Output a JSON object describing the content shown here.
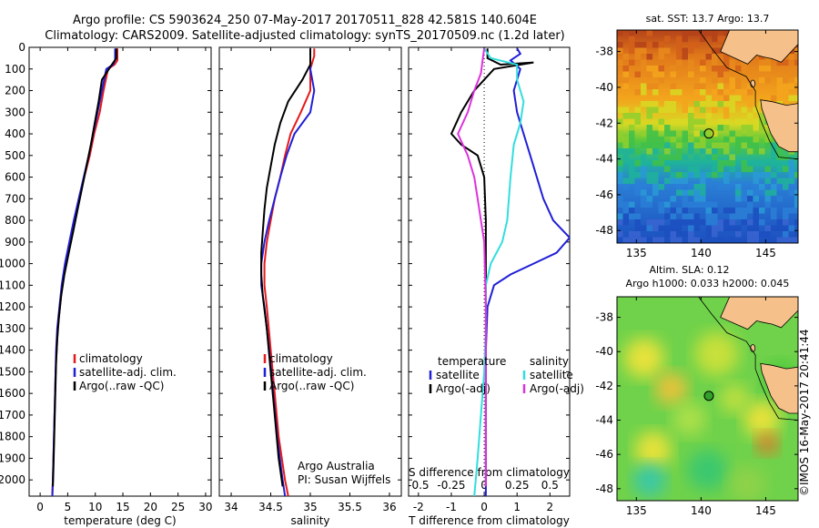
{
  "header": {
    "line1": "Argo profile: CS 5903624_250 07-May-2017 20170511_828 42.581S 140.604E",
    "line2": "Climatology: CARS2009. Satellite-adjusted climatology: synTS_20170509.nc (1.2d later)"
  },
  "stamp": "©IMOS 16-May-2017 20:41:44",
  "credit": {
    "org": "Argo Australia",
    "pi": "PI: Susan Wijffels"
  },
  "colors": {
    "climatology": "#e41a1c",
    "satellite": "#1f1fd6",
    "argo": "#000000",
    "sal_sat": "#33dddd",
    "sal_argo": "#dd33dd",
    "land": "#f5c08a"
  },
  "chart_data": [
    {
      "type": "line",
      "title": "",
      "xlabel": "temperature (deg C)",
      "ylabel": "",
      "xlim": [
        -2,
        31
      ],
      "ylim": [
        2075,
        0
      ],
      "xticks": [
        "0",
        "5",
        "10",
        "15",
        "20",
        "25",
        "30"
      ],
      "yticks": [
        "0",
        "100",
        "200",
        "300",
        "400",
        "500",
        "600",
        "700",
        "800",
        "900",
        "1000",
        "1100",
        "1200",
        "1300",
        "1400",
        "1500",
        "1600",
        "1700",
        "1800",
        "1900",
        "2000"
      ],
      "legend": {
        "placement": "lower-center",
        "entries": [
          "climatology",
          "satellite-adj. clim.",
          "Argo(..raw -QC)"
        ]
      },
      "series": [
        {
          "name": "climatology",
          "color": "#e41a1c",
          "points": [
            [
              14.0,
              5
            ],
            [
              14.0,
              60
            ],
            [
              13.5,
              80
            ],
            [
              12.3,
              100
            ],
            [
              11.5,
              200
            ],
            [
              10.8,
              300
            ],
            [
              9.8,
              400
            ],
            [
              9.0,
              500
            ],
            [
              8.0,
              600
            ],
            [
              7.1,
              700
            ],
            [
              6.2,
              800
            ],
            [
              5.4,
              900
            ],
            [
              4.6,
              1000
            ],
            [
              4.0,
              1100
            ],
            [
              3.6,
              1200
            ],
            [
              3.2,
              1300
            ],
            [
              3.0,
              1400
            ],
            [
              2.8,
              1500
            ],
            [
              2.7,
              1600
            ],
            [
              2.6,
              1700
            ],
            [
              2.5,
              1800
            ],
            [
              2.4,
              1900
            ],
            [
              2.3,
              2000
            ],
            [
              2.2,
              2075
            ]
          ]
        },
        {
          "name": "satellite-adj. clim.",
          "color": "#1f1fd6",
          "points": [
            [
              13.6,
              5
            ],
            [
              13.6,
              60
            ],
            [
              13.2,
              80
            ],
            [
              12.0,
              100
            ],
            [
              11.2,
              200
            ],
            [
              10.4,
              300
            ],
            [
              9.6,
              400
            ],
            [
              8.8,
              500
            ],
            [
              7.9,
              600
            ],
            [
              7.0,
              700
            ],
            [
              6.1,
              800
            ],
            [
              5.3,
              900
            ],
            [
              4.5,
              1000
            ],
            [
              3.9,
              1100
            ],
            [
              3.5,
              1200
            ],
            [
              3.1,
              1300
            ],
            [
              2.9,
              1400
            ],
            [
              2.8,
              1500
            ],
            [
              2.7,
              1600
            ],
            [
              2.6,
              1700
            ],
            [
              2.5,
              1800
            ],
            [
              2.4,
              1900
            ],
            [
              2.3,
              2000
            ],
            [
              2.2,
              2075
            ]
          ]
        },
        {
          "name": "Argo(..raw -QC)",
          "color": "#000000",
          "points": [
            [
              13.8,
              5
            ],
            [
              13.8,
              50
            ],
            [
              13.0,
              80
            ],
            [
              11.2,
              150
            ],
            [
              10.6,
              250
            ],
            [
              9.9,
              350
            ],
            [
              9.2,
              450
            ],
            [
              8.4,
              550
            ],
            [
              7.6,
              650
            ],
            [
              6.8,
              750
            ],
            [
              6.0,
              850
            ],
            [
              5.2,
              950
            ],
            [
              4.4,
              1050
            ],
            [
              3.8,
              1150
            ],
            [
              3.4,
              1250
            ],
            [
              3.1,
              1350
            ],
            [
              2.9,
              1450
            ],
            [
              2.8,
              1550
            ],
            [
              2.7,
              1650
            ],
            [
              2.6,
              1750
            ],
            [
              2.5,
              1850
            ],
            [
              2.4,
              1950
            ],
            [
              2.3,
              2030
            ]
          ]
        }
      ]
    },
    {
      "type": "line",
      "title": "",
      "xlabel": "salinity",
      "ylabel": "",
      "xlim": [
        33.85,
        36.15
      ],
      "ylim": [
        2075,
        0
      ],
      "xticks": [
        "34",
        "34.5",
        "35",
        "35.5",
        "36"
      ],
      "legend": {
        "placement": "lower-center",
        "entries": [
          "climatology",
          "satellite-adj. clim.",
          "Argo(..raw -QC)"
        ]
      },
      "series": [
        {
          "name": "climatology",
          "color": "#e41a1c",
          "points": [
            [
              35.05,
              5
            ],
            [
              35.05,
              40
            ],
            [
              35.0,
              100
            ],
            [
              35.0,
              200
            ],
            [
              34.88,
              300
            ],
            [
              34.75,
              400
            ],
            [
              34.68,
              500
            ],
            [
              34.62,
              600
            ],
            [
              34.55,
              700
            ],
            [
              34.5,
              800
            ],
            [
              34.45,
              900
            ],
            [
              34.42,
              1000
            ],
            [
              34.42,
              1100
            ],
            [
              34.45,
              1200
            ],
            [
              34.5,
              1400
            ],
            [
              34.55,
              1600
            ],
            [
              34.6,
              1800
            ],
            [
              34.68,
              2000
            ],
            [
              34.72,
              2075
            ]
          ]
        },
        {
          "name": "satellite-adj. clim.",
          "color": "#1f1fd6",
          "points": [
            [
              35.0,
              5
            ],
            [
              35.0,
              100
            ],
            [
              35.05,
              200
            ],
            [
              35.0,
              300
            ],
            [
              34.8,
              400
            ],
            [
              34.7,
              500
            ],
            [
              34.62,
              600
            ],
            [
              34.55,
              700
            ],
            [
              34.48,
              800
            ],
            [
              34.42,
              900
            ],
            [
              34.38,
              1000
            ],
            [
              34.38,
              1100
            ],
            [
              34.42,
              1200
            ],
            [
              34.48,
              1400
            ],
            [
              34.53,
              1600
            ],
            [
              34.58,
              1800
            ],
            [
              34.65,
              2000
            ],
            [
              34.68,
              2075
            ]
          ]
        },
        {
          "name": "Argo(..raw -QC)",
          "color": "#000000",
          "points": [
            [
              35.0,
              5
            ],
            [
              35.0,
              80
            ],
            [
              34.9,
              150
            ],
            [
              34.72,
              250
            ],
            [
              34.62,
              350
            ],
            [
              34.55,
              450
            ],
            [
              34.5,
              550
            ],
            [
              34.45,
              650
            ],
            [
              34.42,
              750
            ],
            [
              34.4,
              850
            ],
            [
              34.38,
              950
            ],
            [
              34.38,
              1050
            ],
            [
              34.4,
              1150
            ],
            [
              34.45,
              1300
            ],
            [
              34.5,
              1500
            ],
            [
              34.55,
              1700
            ],
            [
              34.6,
              1900
            ],
            [
              34.65,
              2030
            ]
          ]
        }
      ]
    },
    {
      "type": "line",
      "title": "",
      "xlabel": "T difference from climatology",
      "ylabel": "",
      "top_xlabel": "S difference from climatology",
      "xlim": [
        -2.3,
        2.6
      ],
      "ylim": [
        2075,
        0
      ],
      "xticks": [
        "-2",
        "-1",
        "0",
        "1",
        "2"
      ],
      "top_xticks": [
        "-0.5",
        "-0.25",
        "0",
        "0.25",
        "0.5"
      ],
      "legend": {
        "placement": "lower-center",
        "groups": [
          "temperature",
          "salinity"
        ],
        "entries": [
          "satellite",
          "Argo(-adj)",
          "satellite",
          "Argo(-adj)"
        ]
      },
      "series": [
        {
          "name": "satellite",
          "group": "temperature",
          "color": "#1f1fd6",
          "points": [
            [
              1.0,
              5
            ],
            [
              1.1,
              30
            ],
            [
              0.8,
              60
            ],
            [
              1.1,
              100
            ],
            [
              0.9,
              200
            ],
            [
              1.0,
              300
            ],
            [
              1.2,
              400
            ],
            [
              1.4,
              500
            ],
            [
              1.6,
              600
            ],
            [
              1.8,
              700
            ],
            [
              2.1,
              800
            ],
            [
              2.6,
              880
            ],
            [
              2.2,
              950
            ],
            [
              1.5,
              1000
            ],
            [
              0.8,
              1050
            ],
            [
              0.3,
              1100
            ],
            [
              0.1,
              1200
            ],
            [
              0.05,
              1400
            ],
            [
              0.05,
              2000
            ],
            [
              0.05,
              2075
            ]
          ]
        },
        {
          "name": "Argo(-adj)",
          "group": "temperature",
          "color": "#000000",
          "points": [
            [
              0.1,
              5
            ],
            [
              0.1,
              50
            ],
            [
              0.5,
              80
            ],
            [
              1.5,
              70
            ],
            [
              0.3,
              100
            ],
            [
              -0.3,
              200
            ],
            [
              -0.7,
              300
            ],
            [
              -1.0,
              400
            ],
            [
              -0.7,
              450
            ],
            [
              -0.2,
              500
            ],
            [
              0,
              600
            ],
            [
              0.05,
              800
            ],
            [
              0.05,
              2000
            ],
            [
              0.05,
              2030
            ]
          ]
        },
        {
          "name": "satellite",
          "group": "salinity",
          "color": "#33dddd",
          "points": [
            [
              0,
              5
            ],
            [
              0.2,
              50
            ],
            [
              1.0,
              80
            ],
            [
              1.0,
              150
            ],
            [
              1.2,
              250
            ],
            [
              1.1,
              350
            ],
            [
              0.9,
              450
            ],
            [
              0.8,
              600
            ],
            [
              0.7,
              800
            ],
            [
              0.55,
              900
            ],
            [
              0.2,
              1000
            ],
            [
              0.05,
              1100
            ],
            [
              0.05,
              1300
            ],
            [
              0.0,
              1500
            ],
            [
              -0.1,
              1700
            ],
            [
              -0.2,
              1900
            ],
            [
              -0.3,
              2075
            ]
          ]
        },
        {
          "name": "Argo(-adj)",
          "group": "salinity",
          "color": "#dd33dd",
          "points": [
            [
              0,
              5
            ],
            [
              -0.05,
              60
            ],
            [
              -0.1,
              120
            ],
            [
              -0.3,
              200
            ],
            [
              -0.5,
              300
            ],
            [
              -0.8,
              400
            ],
            [
              -0.5,
              500
            ],
            [
              -0.3,
              600
            ],
            [
              -0.2,
              700
            ],
            [
              -0.1,
              800
            ],
            [
              0,
              900
            ],
            [
              0.05,
              1200
            ],
            [
              0.05,
              2000
            ],
            [
              0.05,
              2030
            ]
          ]
        }
      ]
    },
    {
      "type": "heatmap",
      "title": "sat. SST: 13.7 Argo: 13.7",
      "xlim": [
        133.5,
        147.5
      ],
      "ylim": [
        -48.7,
        -36.8
      ],
      "xticks": [
        "135",
        "140",
        "145"
      ],
      "yticks": [
        "-38",
        "-40",
        "-42",
        "-44",
        "-46",
        "-48"
      ],
      "argo_position": [
        140.604,
        -42.581
      ],
      "sat_sst": 13.7,
      "argo_sst": 13.7
    },
    {
      "type": "heatmap",
      "title": "Altim. SLA: 0.12",
      "subtitle": "Argo h1000: 0.033 h2000: 0.045",
      "xlim": [
        133.5,
        147.5
      ],
      "ylim": [
        -48.7,
        -36.8
      ],
      "xticks": [
        "135",
        "140",
        "145"
      ],
      "yticks": [
        "-38",
        "-40",
        "-42",
        "-44",
        "-46",
        "-48"
      ],
      "argo_position": [
        140.604,
        -42.581
      ],
      "sla": 0.12,
      "h1000": 0.033,
      "h2000": 0.045
    }
  ]
}
